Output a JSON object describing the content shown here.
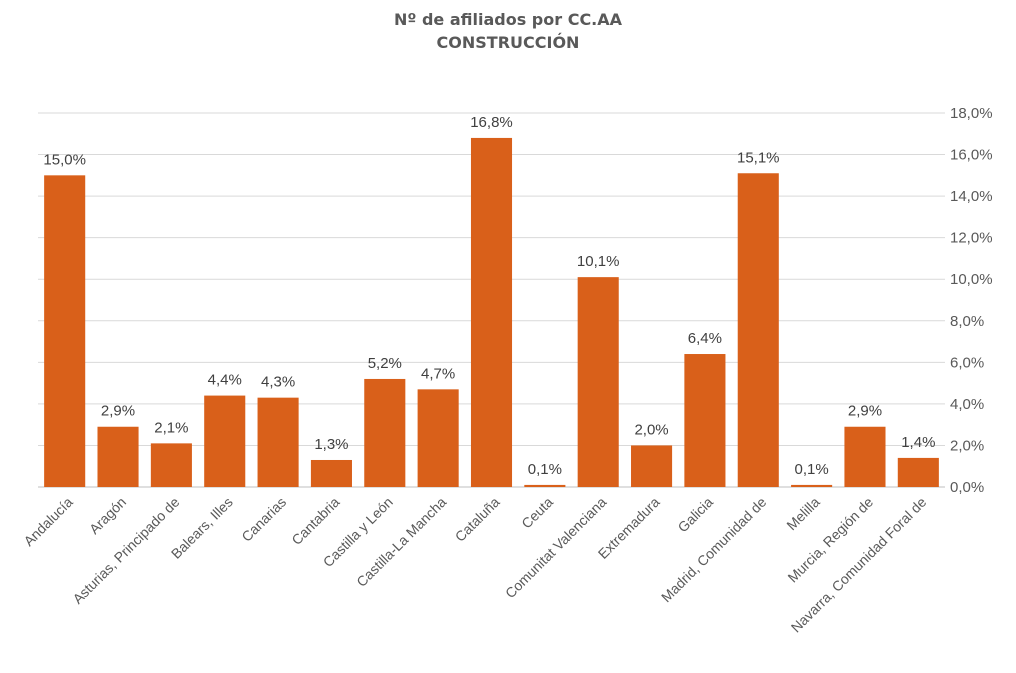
{
  "chart_data": {
    "type": "bar",
    "title": "Nº de afiliados por CC.AA",
    "subtitle": "CONSTRUCCIÓN",
    "categories": [
      "Andalucía",
      "Aragón",
      "Asturias, Principado de",
      "Balears, Illes",
      "Canarias",
      "Cantabria",
      "Castilla y León",
      "Castilla-La Mancha",
      "Cataluña",
      "Ceuta",
      "Comunitat Valenciana",
      "Extremadura",
      "Galicia",
      "Madrid, Comunidad de",
      "Melilla",
      "Murcia, Región de",
      "Navarra, Comunidad Foral de"
    ],
    "values": [
      15.0,
      2.9,
      2.1,
      4.4,
      4.3,
      1.3,
      5.2,
      4.7,
      16.8,
      0.1,
      10.1,
      2.0,
      6.4,
      15.1,
      0.1,
      2.9,
      1.4
    ],
    "data_labels": [
      "15,0%",
      "2,9%",
      "2,1%",
      "4,4%",
      "4,3%",
      "1,3%",
      "5,2%",
      "4,7%",
      "16,8%",
      "0,1%",
      "10,1%",
      "2,0%",
      "6,4%",
      "15,1%",
      "0,1%",
      "2,9%",
      "1,4%"
    ],
    "y_ticks": [
      "0,0%",
      "2,0%",
      "4,0%",
      "6,0%",
      "8,0%",
      "10,0%",
      "12,0%",
      "14,0%",
      "16,0%",
      "18,0%"
    ],
    "ylim": [
      0,
      18
    ],
    "y_axis_side": "right",
    "grid": true,
    "legend": "none",
    "bar_color": "#D9601A",
    "xlabel": "",
    "ylabel": ""
  }
}
